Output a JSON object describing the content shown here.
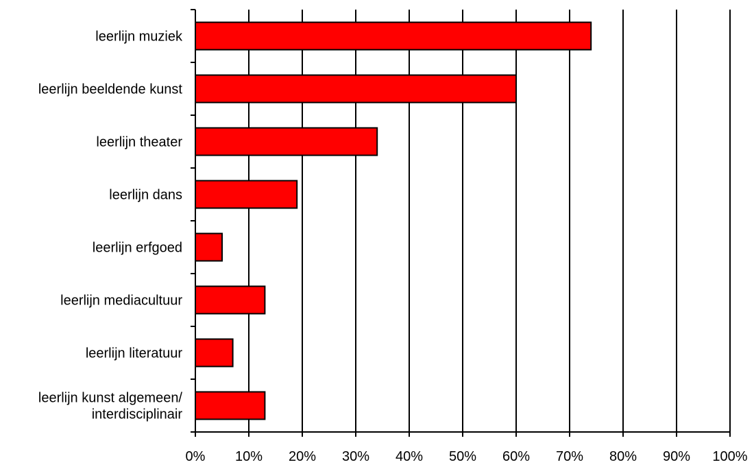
{
  "chart_data": {
    "type": "bar",
    "orientation": "horizontal",
    "title": "",
    "xlabel": "",
    "ylabel": "",
    "categories": [
      "leerlijn muziek",
      "leerlijn beeldende kunst",
      "leerlijn theater",
      "leerlijn dans",
      "leerlijn erfgoed",
      "leerlijn mediacultuur",
      "leerlijn literatuur",
      "leerlijn kunst algemeen/ interdisciplinair"
    ],
    "category_label_lines": [
      [
        "leerlijn muziek"
      ],
      [
        "leerlijn beeldende kunst"
      ],
      [
        "leerlijn theater"
      ],
      [
        "leerlijn dans"
      ],
      [
        "leerlijn erfgoed"
      ],
      [
        "leerlijn mediacultuur"
      ],
      [
        "leerlijn literatuur"
      ],
      [
        "leerlijn kunst algemeen/",
        "interdisciplinair"
      ]
    ],
    "values": [
      74,
      60,
      34,
      19,
      5,
      13,
      7,
      13
    ],
    "value_unit": "%",
    "xlim": [
      0,
      100
    ],
    "x_ticks": [
      0,
      10,
      20,
      30,
      40,
      50,
      60,
      70,
      80,
      90,
      100
    ],
    "x_tick_labels": [
      "0%",
      "10%",
      "20%",
      "30%",
      "40%",
      "50%",
      "60%",
      "70%",
      "80%",
      "90%",
      "100%"
    ],
    "grid": "vertical gridlines at major ticks",
    "legend": "none",
    "colors": {
      "bar_fill": "#ff0000",
      "bar_stroke": "#000000",
      "gridline": "#000000",
      "axis": "#000000",
      "background": "#ffffff"
    }
  }
}
